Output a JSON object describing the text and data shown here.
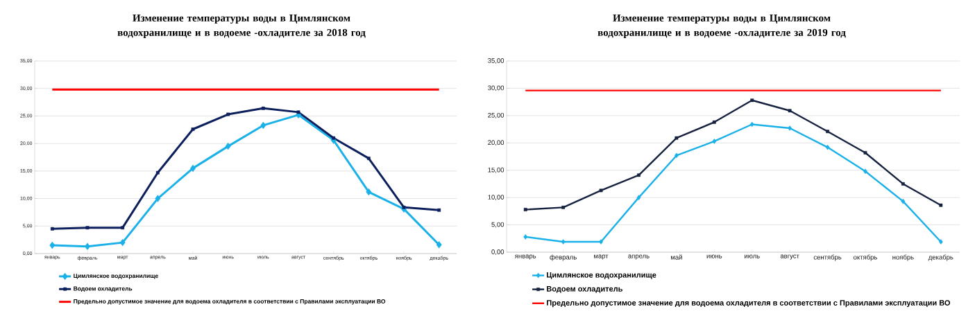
{
  "chart_data": [
    {
      "type": "line",
      "title": "Изменение температуры воды  в Цимлянском водохранилище и в водоеме -охладителе за 2018 год",
      "categories": [
        "январь",
        "февраль",
        "март",
        "апрель",
        "май",
        "июнь",
        "июль",
        "август",
        "сентябрь",
        "октябрь",
        "ноябрь",
        "декабрь"
      ],
      "series": [
        {
          "name": "Цимлянское водохранилище",
          "color": "#1ab0e8",
          "marker": "diamond",
          "values": [
            1.5,
            1.3,
            2.0,
            10.0,
            15.5,
            19.5,
            23.3,
            25.2,
            20.6,
            11.2,
            8.1,
            1.6
          ]
        },
        {
          "name": "Водоем охладитель",
          "color": "#0d1f5c",
          "marker": "square",
          "values": [
            4.5,
            4.7,
            4.7,
            14.7,
            22.6,
            25.3,
            26.4,
            25.7,
            21.0,
            17.3,
            8.4,
            7.9
          ]
        },
        {
          "name": "Предельно допустимое значение для водоема охладителя в соответствии с Правилами эксплуатации ВО",
          "color": "#ff0000",
          "marker": "none",
          "values": [
            29.8,
            29.8,
            29.8,
            29.8,
            29.8,
            29.8,
            29.8,
            29.8,
            29.8,
            29.8,
            29.8,
            29.8
          ]
        }
      ],
      "ylim": [
        0,
        35
      ],
      "yticks": [
        {
          "value": 0,
          "label": "0,00"
        },
        {
          "value": 5,
          "label": "5,00"
        },
        {
          "value": 10,
          "label": "10,00"
        },
        {
          "value": 15,
          "label": "15,00"
        },
        {
          "value": 20,
          "label": "20,00"
        },
        {
          "value": 25,
          "label": "25,00"
        },
        {
          "value": 30,
          "label": "30,00"
        },
        {
          "value": 35,
          "label": "35,00"
        }
      ],
      "grid": "y",
      "legend": "bottom"
    },
    {
      "type": "line",
      "title": "Изменение температуры воды  в Цимлянском водохранилище и в водоеме -охладителе за 2019 год",
      "categories": [
        "январь",
        "февраль",
        "март",
        "апрель",
        "май",
        "июнь",
        "июль",
        "август",
        "сентябрь",
        "октябрь",
        "ноябрь",
        "декабрь"
      ],
      "series": [
        {
          "name": "Цимлянское водохранилище",
          "color": "#1ab0e8",
          "marker": "diamond",
          "values": [
            2.8,
            1.9,
            1.9,
            10.0,
            17.7,
            20.3,
            23.4,
            22.7,
            19.2,
            14.8,
            9.3,
            1.9
          ]
        },
        {
          "name": "Водоем охладитель",
          "color": "#16223f",
          "marker": "square",
          "values": [
            7.8,
            8.2,
            11.3,
            14.1,
            20.9,
            23.8,
            27.8,
            25.9,
            22.1,
            18.2,
            12.5,
            8.6
          ]
        },
        {
          "name": "Предельно допустимое значение для водоема охладителя в соответствии с Правилами эксплуатации ВО",
          "color": "#ff0000",
          "marker": "none",
          "values": [
            29.6,
            29.6,
            29.6,
            29.6,
            29.6,
            29.6,
            29.6,
            29.6,
            29.6,
            29.6,
            29.6,
            29.6
          ]
        }
      ],
      "ylim": [
        0,
        35
      ],
      "yticks": [
        {
          "value": 0,
          "label": "0,00"
        },
        {
          "value": 5,
          "label": "5,00"
        },
        {
          "value": 10,
          "label": "10,00"
        },
        {
          "value": 15,
          "label": "15,00"
        },
        {
          "value": 20,
          "label": "20,00"
        },
        {
          "value": 25,
          "label": "25,00"
        },
        {
          "value": 30,
          "label": "30,00"
        },
        {
          "value": 35,
          "label": "35,00"
        }
      ],
      "grid": "y",
      "legend": "bottom"
    }
  ]
}
